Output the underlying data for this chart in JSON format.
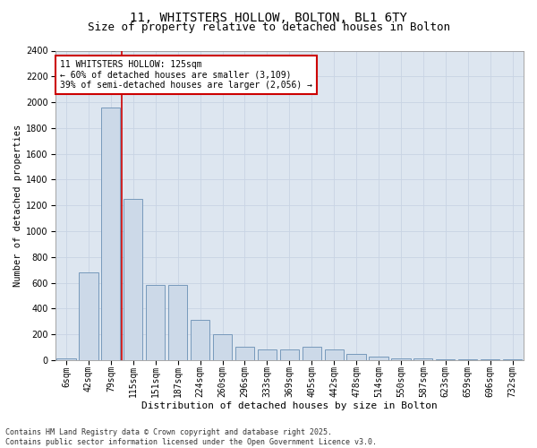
{
  "title1": "11, WHITSTERS HOLLOW, BOLTON, BL1 6TY",
  "title2": "Size of property relative to detached houses in Bolton",
  "xlabel": "Distribution of detached houses by size in Bolton",
  "ylabel": "Number of detached properties",
  "categories": [
    "6sqm",
    "42sqm",
    "79sqm",
    "115sqm",
    "151sqm",
    "187sqm",
    "224sqm",
    "260sqm",
    "296sqm",
    "333sqm",
    "369sqm",
    "405sqm",
    "442sqm",
    "478sqm",
    "514sqm",
    "550sqm",
    "587sqm",
    "623sqm",
    "659sqm",
    "696sqm",
    "732sqm"
  ],
  "values": [
    10,
    680,
    1960,
    1250,
    580,
    580,
    310,
    200,
    105,
    80,
    80,
    100,
    80,
    50,
    30,
    15,
    10,
    5,
    3,
    3,
    3
  ],
  "bar_color": "#ccd9e8",
  "bar_edge_color": "#7799bb",
  "grid_color": "#c8d4e4",
  "bg_color": "#dde6f0",
  "vline_color": "#cc0000",
  "vline_pos": 2.5,
  "annotation_text": "11 WHITSTERS HOLLOW: 125sqm\n← 60% of detached houses are smaller (3,109)\n39% of semi-detached houses are larger (2,056) →",
  "annotation_box_edgecolor": "#cc0000",
  "ylim": [
    0,
    2400
  ],
  "yticks": [
    0,
    200,
    400,
    600,
    800,
    1000,
    1200,
    1400,
    1600,
    1800,
    2000,
    2200,
    2400
  ],
  "footnote": "Contains HM Land Registry data © Crown copyright and database right 2025.\nContains public sector information licensed under the Open Government Licence v3.0.",
  "title1_fontsize": 10,
  "title2_fontsize": 9,
  "xlabel_fontsize": 8,
  "ylabel_fontsize": 7.5,
  "tick_fontsize": 7,
  "annot_fontsize": 7,
  "footnote_fontsize": 6
}
